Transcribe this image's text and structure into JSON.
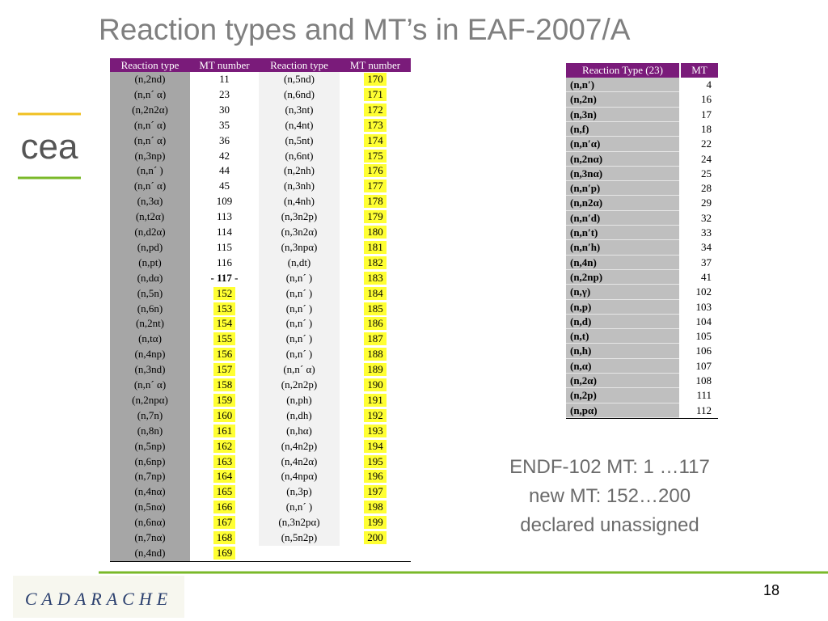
{
  "title": "Reaction types and MT’s in EAF-2007/A",
  "table1": {
    "header": [
      "Reaction type",
      "MT number",
      "Reaction type",
      "MT number"
    ],
    "left": [
      [
        "(n,2nd)",
        11
      ],
      [
        "(n,n´ α)",
        23
      ],
      [
        "(n,2n2α)",
        30
      ],
      [
        "(n,n´ α)",
        35
      ],
      [
        "(n,n´ α)",
        36
      ],
      [
        "(n,3np)",
        42
      ],
      [
        "(n,n´ )",
        44
      ],
      [
        "(n,n´ α)",
        45
      ],
      [
        "(n,3α)",
        109
      ],
      [
        "(n,t2α)",
        113
      ],
      [
        "(n,d2α)",
        114
      ],
      [
        "(n,pd)",
        115
      ],
      [
        "(n,pt)",
        116
      ],
      [
        "(n,dα)",
        "- 117 -"
      ],
      [
        "(n,5n)",
        152
      ],
      [
        "(n,6n)",
        153
      ],
      [
        "(n,2nt)",
        154
      ],
      [
        "(n,tα)",
        155
      ],
      [
        "(n,4np)",
        156
      ],
      [
        "(n,3nd)",
        157
      ],
      [
        "(n,n´ α)",
        158
      ],
      [
        "(n,2npα)",
        159
      ],
      [
        "(n,7n)",
        160
      ],
      [
        "(n,8n)",
        161
      ],
      [
        "(n,5np)",
        162
      ],
      [
        "(n,6np)",
        163
      ],
      [
        "(n,7np)",
        164
      ],
      [
        "(n,4nα)",
        165
      ],
      [
        "(n,5nα)",
        166
      ],
      [
        "(n,6nα)",
        167
      ],
      [
        "(n,7nα)",
        168
      ],
      [
        "(n,4nd)",
        169
      ]
    ],
    "right": [
      [
        "(n,5nd)",
        170
      ],
      [
        "(n,6nd)",
        171
      ],
      [
        "(n,3nt)",
        172
      ],
      [
        "(n,4nt)",
        173
      ],
      [
        "(n,5nt)",
        174
      ],
      [
        "(n,6nt)",
        175
      ],
      [
        "(n,2nh)",
        176
      ],
      [
        "(n,3nh)",
        177
      ],
      [
        "(n,4nh)",
        178
      ],
      [
        "(n,3n2p)",
        179
      ],
      [
        "(n,3n2α)",
        180
      ],
      [
        "(n,3npα)",
        181
      ],
      [
        "(n,dt)",
        182
      ],
      [
        "(n,n´ )",
        183
      ],
      [
        "(n,n´ )",
        184
      ],
      [
        "(n,n´ )",
        185
      ],
      [
        "(n,n´ )",
        186
      ],
      [
        "(n,n´ )",
        187
      ],
      [
        "(n,n´ )",
        188
      ],
      [
        "(n,n´ α)",
        189
      ],
      [
        "(n,2n2p)",
        190
      ],
      [
        "(n,ph)",
        191
      ],
      [
        "(n,dh)",
        192
      ],
      [
        "(n,hα)",
        193
      ],
      [
        "(n,4n2p)",
        194
      ],
      [
        "(n,4n2α)",
        195
      ],
      [
        "(n,4npα)",
        196
      ],
      [
        "(n,3p)",
        197
      ],
      [
        "(n,n´ )",
        198
      ],
      [
        "(n,3n2pα)",
        199
      ],
      [
        "(n,5n2p)",
        200
      ]
    ]
  },
  "table2": {
    "header": [
      "Reaction Type (23)",
      "MT"
    ],
    "rows": [
      [
        "(n,n′)",
        4
      ],
      [
        "(n,2n)",
        16
      ],
      [
        "(n,3n)",
        17
      ],
      [
        "(n,f)",
        18
      ],
      [
        "(n,n′α)",
        22
      ],
      [
        "(n,2nα)",
        24
      ],
      [
        "(n,3nα)",
        25
      ],
      [
        "(n,n′p)",
        28
      ],
      [
        "(n,n2α)",
        29
      ],
      [
        "(n,n′d)",
        32
      ],
      [
        "(n,n′t)",
        33
      ],
      [
        "(n,n′h)",
        34
      ],
      [
        "(n,4n)",
        37
      ],
      [
        "(n,2np)",
        41
      ],
      [
        "(n,γ)",
        102
      ],
      [
        "(n,p)",
        103
      ],
      [
        "(n,d)",
        104
      ],
      [
        "(n,t)",
        105
      ],
      [
        "(n,h)",
        106
      ],
      [
        "(n,α)",
        107
      ],
      [
        "(n,2α)",
        108
      ],
      [
        "(n,2p)",
        111
      ],
      [
        "(n,pα)",
        112
      ]
    ]
  },
  "note": [
    "ENDF-102 MT: 1 …117",
    "new MT: 152…200",
    "declared unassigned"
  ],
  "logo_top": "cea",
  "logo_bottom": "CADARACHE",
  "page_number": "18"
}
